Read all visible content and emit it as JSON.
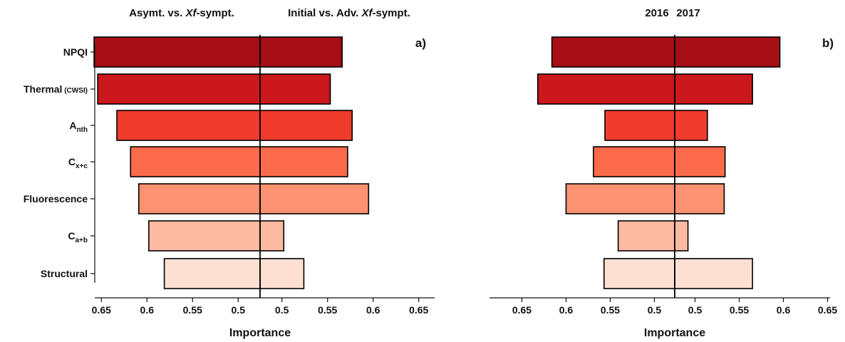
{
  "chart_data": [
    {
      "type": "bar",
      "panel_label": "a)",
      "left_header": {
        "text": "Asymt. vs. ",
        "italic": "Xf",
        "tail": "-sympt."
      },
      "right_header": {
        "text": "Initial vs. Adv. ",
        "italic": "Xf",
        "tail": "-sympt."
      },
      "xlabel": "Importance",
      "categories": [
        {
          "main": "NPQI",
          "sub": "",
          "color": "#a50f15"
        },
        {
          "main": "Thermal",
          "sub": "(CWSI)",
          "color": "#cb181d"
        },
        {
          "main": "A",
          "sub": "nth",
          "color": "#ef3b2c"
        },
        {
          "main": "C",
          "sub": "x+c",
          "color": "#fb6a4a"
        },
        {
          "main": "Fluorescence",
          "sub": "",
          "color": "#fc9272"
        },
        {
          "main": "C",
          "sub": "a+b",
          "color": "#fcbba1"
        },
        {
          "main": "Structural",
          "sub": "",
          "color": "#fee0d2"
        }
      ],
      "series": [
        {
          "side": "left",
          "values": [
            0.658,
            0.654,
            0.633,
            0.618,
            0.609,
            0.598,
            0.581
          ]
        },
        {
          "side": "right",
          "values": [
            0.566,
            0.553,
            0.577,
            0.572,
            0.595,
            0.502,
            0.524
          ]
        }
      ],
      "ticks_left": [
        "0.65",
        "0.6",
        "0.55",
        "0.5"
      ],
      "ticks_right": [
        "0.5",
        "0.55",
        "0.6",
        "0.65"
      ],
      "center_value": 0.476
    },
    {
      "type": "bar",
      "panel_label": "b)",
      "left_header": {
        "text": "2016"
      },
      "right_header": {
        "text": "2017"
      },
      "xlabel": "Importance",
      "categories": [
        {
          "main": "NPQI",
          "sub": "",
          "color": "#a50f15"
        },
        {
          "main": "Thermal",
          "sub": "(CWSI)",
          "color": "#cb181d"
        },
        {
          "main": "A",
          "sub": "nth",
          "color": "#ef3b2c"
        },
        {
          "main": "C",
          "sub": "x+c",
          "color": "#fb6a4a"
        },
        {
          "main": "Fluorescence",
          "sub": "",
          "color": "#fc9272"
        },
        {
          "main": "C",
          "sub": "a+b",
          "color": "#fcbba1"
        },
        {
          "main": "Structural",
          "sub": "",
          "color": "#fee0d2"
        }
      ],
      "series": [
        {
          "side": "left",
          "values": [
            0.616,
            0.632,
            0.556,
            0.569,
            0.6,
            0.541,
            0.557
          ]
        },
        {
          "side": "right",
          "values": [
            0.596,
            0.565,
            0.514,
            0.534,
            0.533,
            0.492,
            0.565
          ]
        }
      ],
      "ticks_left": [
        "0.65",
        "0.6",
        "0.55",
        "0.5"
      ],
      "ticks_right": [
        "0.5",
        "0.55",
        "0.6",
        "0.65"
      ],
      "center_value": 0.477
    }
  ]
}
